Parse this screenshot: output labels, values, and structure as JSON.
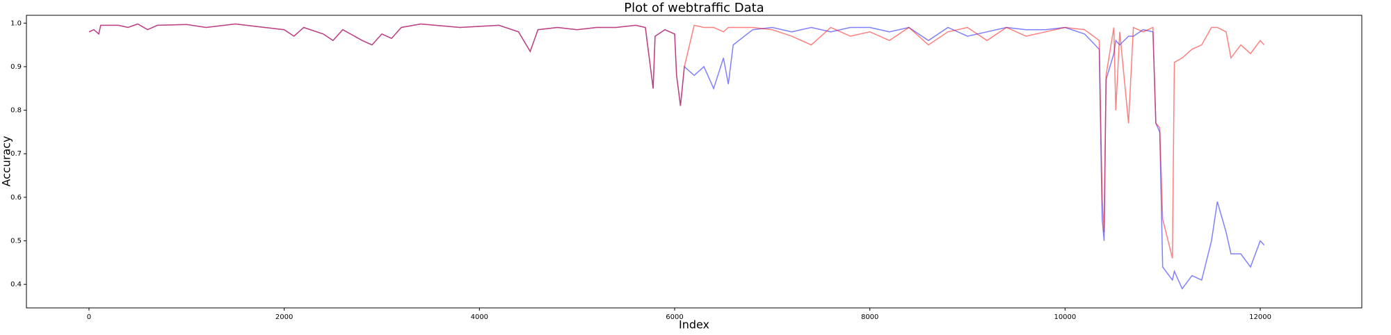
{
  "chart_data": {
    "type": "line",
    "title": "Plot of webtraffic Data",
    "x_label": "Index",
    "y_label": "Accuracy",
    "x": [
      0,
      50,
      100,
      120,
      300,
      400,
      500,
      600,
      700,
      1000,
      1200,
      1500,
      1800,
      2000,
      2100,
      2200,
      2400,
      2500,
      2600,
      2800,
      2900,
      3000,
      3100,
      3200,
      3400,
      3800,
      4200,
      4400,
      4520,
      4600,
      4800,
      5000,
      5200,
      5400,
      5600,
      5700,
      5780,
      5800,
      5900,
      6000,
      6020,
      6060,
      6100,
      6200,
      6300,
      6400,
      6500,
      6550,
      6600,
      6800,
      7000,
      7200,
      7400,
      7600,
      7800,
      8000,
      8200,
      8400,
      8600,
      8800,
      9000,
      9200,
      9400,
      9600,
      9800,
      10000,
      10200,
      10350,
      10380,
      10400,
      10420,
      10500,
      10520,
      10560,
      10650,
      10700,
      10800,
      10900,
      10930,
      10970,
      11000,
      11100,
      11120,
      11200,
      11300,
      11400,
      11500,
      11560,
      11650,
      11700,
      11800,
      11900,
      12000,
      12040
    ],
    "series": [
      {
        "color": "#0000ff",
        "alpha": 0.5,
        "values": [
          0.98,
          0.985,
          0.975,
          0.995,
          0.995,
          0.99,
          0.998,
          0.985,
          0.995,
          0.997,
          0.99,
          0.998,
          0.99,
          0.985,
          0.97,
          0.99,
          0.975,
          0.96,
          0.985,
          0.96,
          0.95,
          0.975,
          0.965,
          0.99,
          0.998,
          0.99,
          0.995,
          0.98,
          0.935,
          0.985,
          0.99,
          0.985,
          0.99,
          0.99,
          0.995,
          0.99,
          0.85,
          0.97,
          0.985,
          0.975,
          0.88,
          0.81,
          0.9,
          0.88,
          0.9,
          0.85,
          0.92,
          0.86,
          0.95,
          0.985,
          0.99,
          0.98,
          0.99,
          0.98,
          0.99,
          0.99,
          0.98,
          0.99,
          0.96,
          0.99,
          0.97,
          0.98,
          0.99,
          0.985,
          0.985,
          0.99,
          0.975,
          0.94,
          0.55,
          0.5,
          0.87,
          0.93,
          0.96,
          0.95,
          0.97,
          0.97,
          0.985,
          0.98,
          0.77,
          0.75,
          0.44,
          0.41,
          0.43,
          0.39,
          0.42,
          0.41,
          0.5,
          0.59,
          0.52,
          0.47,
          0.47,
          0.44,
          0.5,
          0.49
        ]
      },
      {
        "color": "#ff0000",
        "alpha": 0.5,
        "values": [
          0.98,
          0.985,
          0.975,
          0.995,
          0.995,
          0.99,
          0.998,
          0.985,
          0.995,
          0.997,
          0.99,
          0.998,
          0.99,
          0.985,
          0.97,
          0.99,
          0.975,
          0.96,
          0.985,
          0.96,
          0.95,
          0.975,
          0.965,
          0.99,
          0.998,
          0.99,
          0.995,
          0.98,
          0.935,
          0.985,
          0.99,
          0.985,
          0.99,
          0.99,
          0.995,
          0.99,
          0.85,
          0.97,
          0.985,
          0.975,
          0.88,
          0.81,
          0.9,
          0.995,
          0.99,
          0.99,
          0.98,
          0.99,
          0.99,
          0.99,
          0.985,
          0.97,
          0.95,
          0.99,
          0.97,
          0.98,
          0.96,
          0.99,
          0.95,
          0.98,
          0.99,
          0.96,
          0.99,
          0.97,
          0.98,
          0.99,
          0.985,
          0.96,
          0.6,
          0.52,
          0.88,
          0.99,
          0.8,
          0.98,
          0.77,
          0.99,
          0.98,
          0.99,
          0.77,
          0.76,
          0.55,
          0.46,
          0.91,
          0.92,
          0.94,
          0.95,
          0.99,
          0.99,
          0.98,
          0.92,
          0.95,
          0.93,
          0.96,
          0.95
        ]
      }
    ],
    "xlim": [
      -641,
      13040
    ],
    "ylim": [
      0.346,
      1.018
    ],
    "xticks": [
      0,
      2000,
      4000,
      6000,
      8000,
      10000,
      12000
    ],
    "yticks": [
      0.4,
      0.5,
      0.6,
      0.7,
      0.8,
      0.9,
      {
        "value": 1,
        "label": "1.0"
      }
    ]
  }
}
